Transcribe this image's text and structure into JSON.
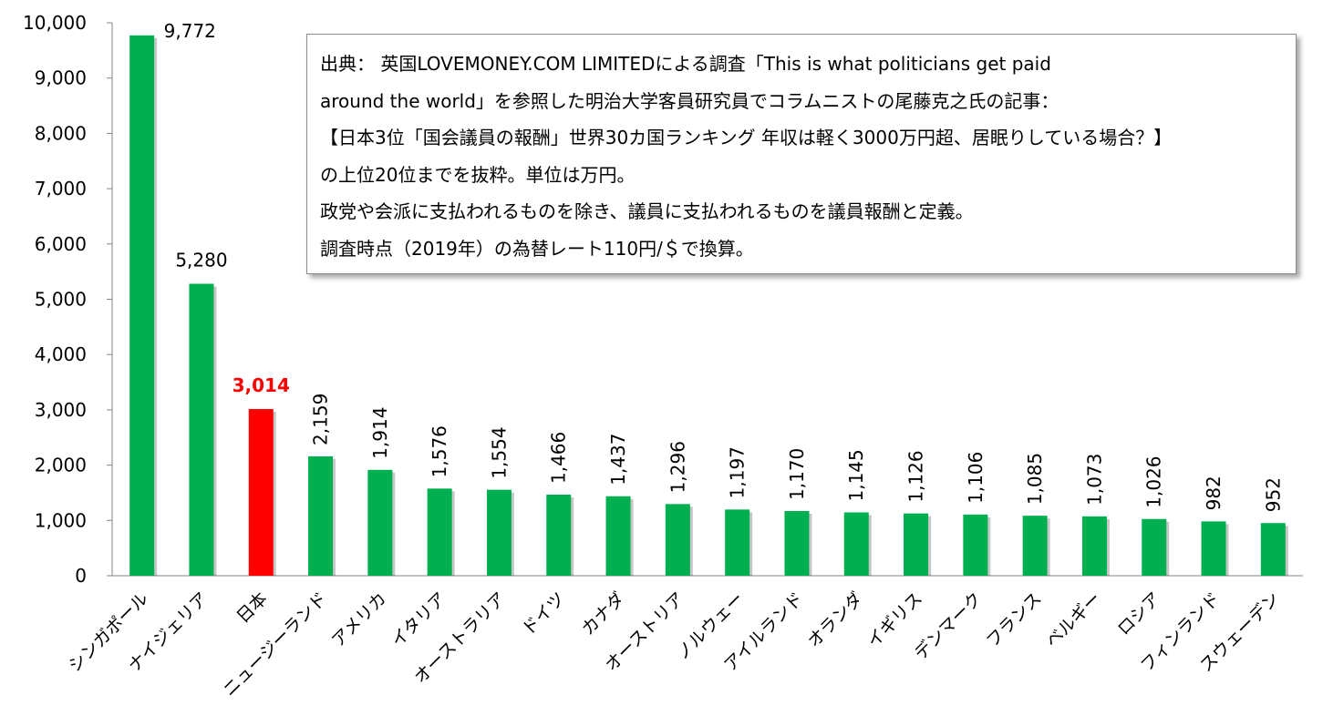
{
  "chart_data": {
    "type": "bar",
    "categories": [
      "シンガポール",
      "ナイジェリア",
      "日本",
      "ニュージーランド",
      "アメリカ",
      "イタリア",
      "オーストラリア",
      "ドイツ",
      "カナダ",
      "オーストリア",
      "ノルウェー",
      "アイルランド",
      "オランダ",
      "イギリス",
      "デンマーク",
      "フランス",
      "ベルギー",
      "ロシア",
      "フィンランド",
      "スウェーデン"
    ],
    "values": [
      9772,
      5280,
      3014,
      2159,
      1914,
      1576,
      1554,
      1466,
      1437,
      1296,
      1197,
      1170,
      1145,
      1126,
      1106,
      1085,
      1073,
      1026,
      982,
      952
    ],
    "value_labels": [
      "9,772",
      "5,280",
      "3,014",
      "2,159",
      "1,914",
      "1,576",
      "1,554",
      "1,466",
      "1,437",
      "1,296",
      "1,197",
      "1,170",
      "1,145",
      "1,126",
      "1,106",
      "1,085",
      "1,073",
      "1,026",
      "982",
      "952"
    ],
    "highlight_index": 2,
    "ylim": [
      0,
      10000
    ],
    "yticks": [
      "0",
      "1,000",
      "2,000",
      "3,000",
      "4,000",
      "5,000",
      "6,000",
      "7,000",
      "8,000",
      "9,000",
      "10,000"
    ],
    "colors": {
      "bar": "#00b050",
      "highlight": "#ff0000",
      "highlight_label": "#ff0000"
    },
    "grid": false,
    "title": "",
    "xlabel": "",
    "ylabel": ""
  },
  "note": {
    "lines": [
      "出典： 英国LOVEMONEY.COM LIMITEDによる調査「This is what politicians get paid",
      "around the world」を参照した明治大学客員研究員でコラムニストの尾藤克之氏の記事：",
      "【日本3位「国会議員の報酬」世界30カ国ランキング 年収は軽く3000万円超、居眠りしている場合？】",
      "の上位20位までを抜粋。単位は万円。",
      "政党や会派に支払われるものを除き、議員に支払われるものを議員報酬と定義。",
      "調査時点（2019年）の為替レート110円/＄で換算。"
    ]
  }
}
